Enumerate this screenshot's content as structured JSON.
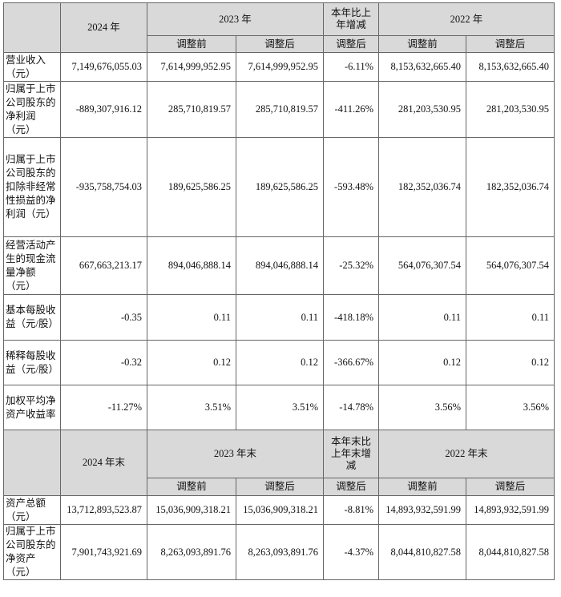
{
  "header1": {
    "col_2024": "2024 年",
    "col_2023": "2023 年",
    "col_change": "本年比上年增减",
    "col_2022": "2022 年",
    "before": "调整前",
    "after": "调整后"
  },
  "rows1": [
    {
      "label": "营业收入（元）",
      "v2024": "7,149,676,055.03",
      "v2023_before": "7,614,999,952.95",
      "v2023_after": "7,614,999,952.95",
      "change": "-6.11%",
      "v2022_before": "8,153,632,665.40",
      "v2022_after": "8,153,632,665.40"
    },
    {
      "label": "归属于上市公司股东的净利润（元）",
      "v2024": "-889,307,916.12",
      "v2023_before": "285,710,819.57",
      "v2023_after": "285,710,819.57",
      "change": "-411.26%",
      "v2022_before": "281,203,530.95",
      "v2022_after": "281,203,530.95"
    },
    {
      "label": "归属于上市公司股东的扣除非经常性损益的净利润（元）",
      "v2024": "-935,758,754.03",
      "v2023_before": "189,625,586.25",
      "v2023_after": "189,625,586.25",
      "change": "-593.48%",
      "v2022_before": "182,352,036.74",
      "v2022_after": "182,352,036.74"
    },
    {
      "label": "经营活动产生的现金流量净额（元）",
      "v2024": "667,663,213.17",
      "v2023_before": "894,046,888.14",
      "v2023_after": "894,046,888.14",
      "change": "-25.32%",
      "v2022_before": "564,076,307.54",
      "v2022_after": "564,076,307.54"
    },
    {
      "label": "基本每股收益（元/股）",
      "v2024": "-0.35",
      "v2023_before": "0.11",
      "v2023_after": "0.11",
      "change": "-418.18%",
      "v2022_before": "0.11",
      "v2022_after": "0.11"
    },
    {
      "label": "稀释每股收益（元/股）",
      "v2024": "-0.32",
      "v2023_before": "0.12",
      "v2023_after": "0.12",
      "change": "-366.67%",
      "v2022_before": "0.12",
      "v2022_after": "0.12"
    },
    {
      "label": "加权平均净资产收益率",
      "v2024": "-11.27%",
      "v2023_before": "3.51%",
      "v2023_after": "3.51%",
      "change": "-14.78%",
      "v2022_before": "3.56%",
      "v2022_after": "3.56%"
    }
  ],
  "header2": {
    "col_2024": "2024 年末",
    "col_2023": "2023 年末",
    "col_change": "本年末比上年末增减",
    "col_2022": "2022 年末",
    "before": "调整前",
    "after": "调整后"
  },
  "rows2": [
    {
      "label": "资产总额（元）",
      "v2024": "13,712,893,523.87",
      "v2023_before": "15,036,909,318.21",
      "v2023_after": "15,036,909,318.21",
      "change": "-8.81%",
      "v2022_before": "14,893,932,591.99",
      "v2022_after": "14,893,932,591.99"
    },
    {
      "label": "归属于上市公司股东的净资产（元）",
      "v2024": "7,901,743,921.69",
      "v2023_before": "8,263,093,891.76",
      "v2023_after": "8,263,093,891.76",
      "change": "-4.37%",
      "v2022_before": "8,044,810,827.58",
      "v2022_after": "8,044,810,827.58"
    }
  ]
}
